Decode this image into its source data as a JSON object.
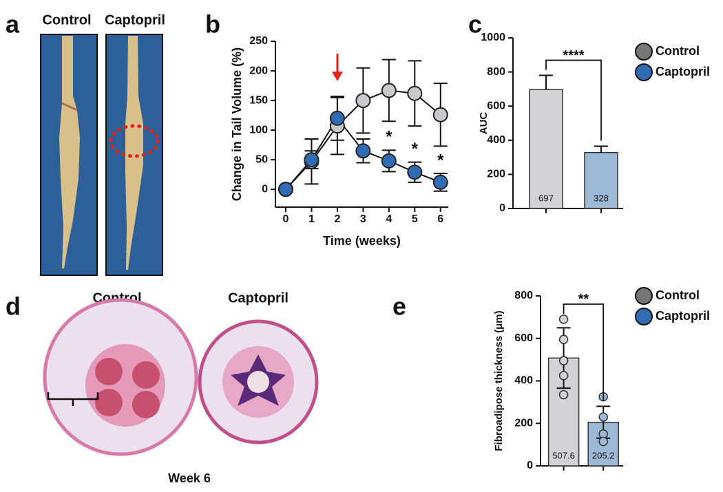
{
  "panels": {
    "a": "a",
    "b": "b",
    "c": "c",
    "d": "d",
    "e": "e"
  },
  "photo_labels": [
    "Control",
    "Captopril"
  ],
  "section_labels": [
    "Control",
    "Captopril"
  ],
  "section_caption": "Week 6",
  "chart_data": [
    {
      "type": "line",
      "ylabel": "Change in Tail Volume  (%)",
      "xlabel": "Time (weeks)",
      "x": [
        0,
        1,
        2,
        3,
        4,
        5,
        6
      ],
      "xlim": [
        -0.4,
        6.3
      ],
      "xticks": [
        0,
        1,
        2,
        3,
        4,
        5,
        6
      ],
      "ylim": [
        -30,
        250
      ],
      "yticks": [
        0,
        50,
        100,
        150,
        200,
        250
      ],
      "series": [
        {
          "name": "Control",
          "color": "#c9c9cc",
          "values": [
            0,
            47,
            107,
            150,
            167,
            162,
            126
          ],
          "errors": [
            0,
            38,
            48,
            55,
            52,
            55,
            53
          ]
        },
        {
          "name": "Captopril",
          "color": "#2f6cb3",
          "values": [
            0,
            50,
            120,
            65,
            48,
            29,
            12
          ],
          "errors": [
            0,
            15,
            37,
            20,
            18,
            17,
            15
          ]
        }
      ],
      "annotations": [
        {
          "text": "*",
          "x": 4
        },
        {
          "text": "*",
          "x": 5
        },
        {
          "text": "*",
          "x": 6
        }
      ]
    },
    {
      "type": "bar",
      "ylabel": "AUC",
      "ylim": [
        0,
        1000
      ],
      "yticks": [
        0,
        200,
        400,
        600,
        800,
        1000
      ],
      "significance": "****",
      "series": [
        {
          "name": "Control",
          "color": "#d3d3d7",
          "marker_color": "#777777",
          "values": [
            697
          ],
          "errors": [
            83
          ]
        },
        {
          "name": "Captopril",
          "color": "#9cb9d6",
          "marker_color": "#2f6cb3",
          "values": [
            328
          ],
          "errors": [
            37
          ]
        }
      ]
    },
    {
      "type": "bar",
      "ylabel": "Fibroadipose thickness (μm)",
      "ylim": [
        0,
        800
      ],
      "yticks": [
        0,
        200,
        400,
        600,
        800
      ],
      "significance": "**",
      "series": [
        {
          "name": "Control",
          "color": "#d3d3d7",
          "marker_color": "#777777",
          "values": [
            507.6
          ],
          "errors": [
            142
          ],
          "points": [
            690,
            595,
            495,
            425,
            335
          ]
        },
        {
          "name": "Captopril",
          "color": "#9cb9d6",
          "marker_color": "#2f6cb3",
          "values": [
            205.2
          ],
          "errors": [
            75
          ],
          "points": [
            325,
            230,
            150,
            115
          ]
        }
      ]
    }
  ]
}
